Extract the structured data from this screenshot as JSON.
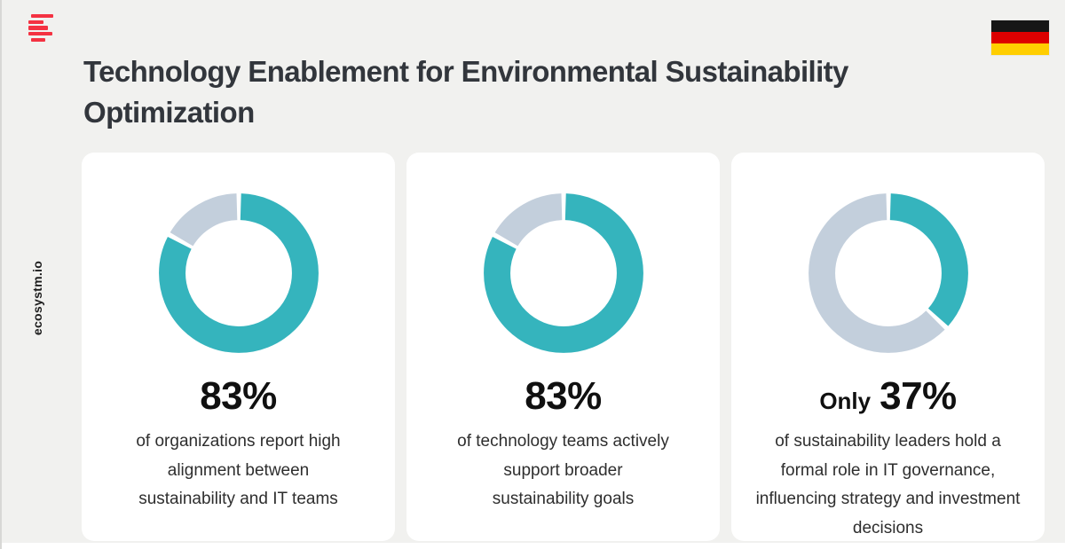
{
  "header": {
    "title": "Technology Enablement for Environmental Sustainability Optimization",
    "logo_color": "#f43242",
    "flag_colors": {
      "black": "#161616",
      "red": "#dd0000",
      "gold": "#ffce00"
    }
  },
  "watermark": "ecosystm.io",
  "colors": {
    "background": "#f1f1ef",
    "card_background": "#ffffff",
    "accent_teal": "#35b4bd",
    "muted_blue_gray": "#c3cfdc",
    "title_text": "#32363c",
    "body_text": "#2e2e2e"
  },
  "cards": [
    {
      "stat_prefix": "",
      "stat_value": "83%",
      "description": "of organizations report high alignment between sustainability and IT teams"
    },
    {
      "stat_prefix": "",
      "stat_value": "83%",
      "description": "of technology teams actively support broader sustainability goals"
    },
    {
      "stat_prefix": "Only",
      "stat_value": "37%",
      "description": "of sustainability leaders hold a formal role in IT governance, influencing strategy and investment decisions"
    }
  ],
  "chart_data": [
    {
      "type": "pie",
      "style": "donut",
      "percent_label": "83%",
      "caption": "of organizations report high alignment between sustainability and IT teams",
      "values": [
        83,
        17
      ],
      "colors": [
        "#35b4bd",
        "#c3cfdc"
      ],
      "start_angle_deg": 0,
      "direction": "clockwise",
      "legend": "none"
    },
    {
      "type": "pie",
      "style": "donut",
      "percent_label": "83%",
      "caption": "of technology teams actively support broader sustainability goals",
      "values": [
        83,
        17
      ],
      "colors": [
        "#35b4bd",
        "#c3cfdc"
      ],
      "start_angle_deg": 0,
      "direction": "clockwise",
      "legend": "none"
    },
    {
      "type": "pie",
      "style": "donut",
      "percent_label": "Only 37%",
      "caption": "of sustainability leaders hold a formal role in IT governance, influencing strategy and investment decisions",
      "values": [
        37,
        63
      ],
      "colors": [
        "#35b4bd",
        "#c3cfdc"
      ],
      "start_angle_deg": 0,
      "direction": "clockwise",
      "legend": "none"
    }
  ]
}
